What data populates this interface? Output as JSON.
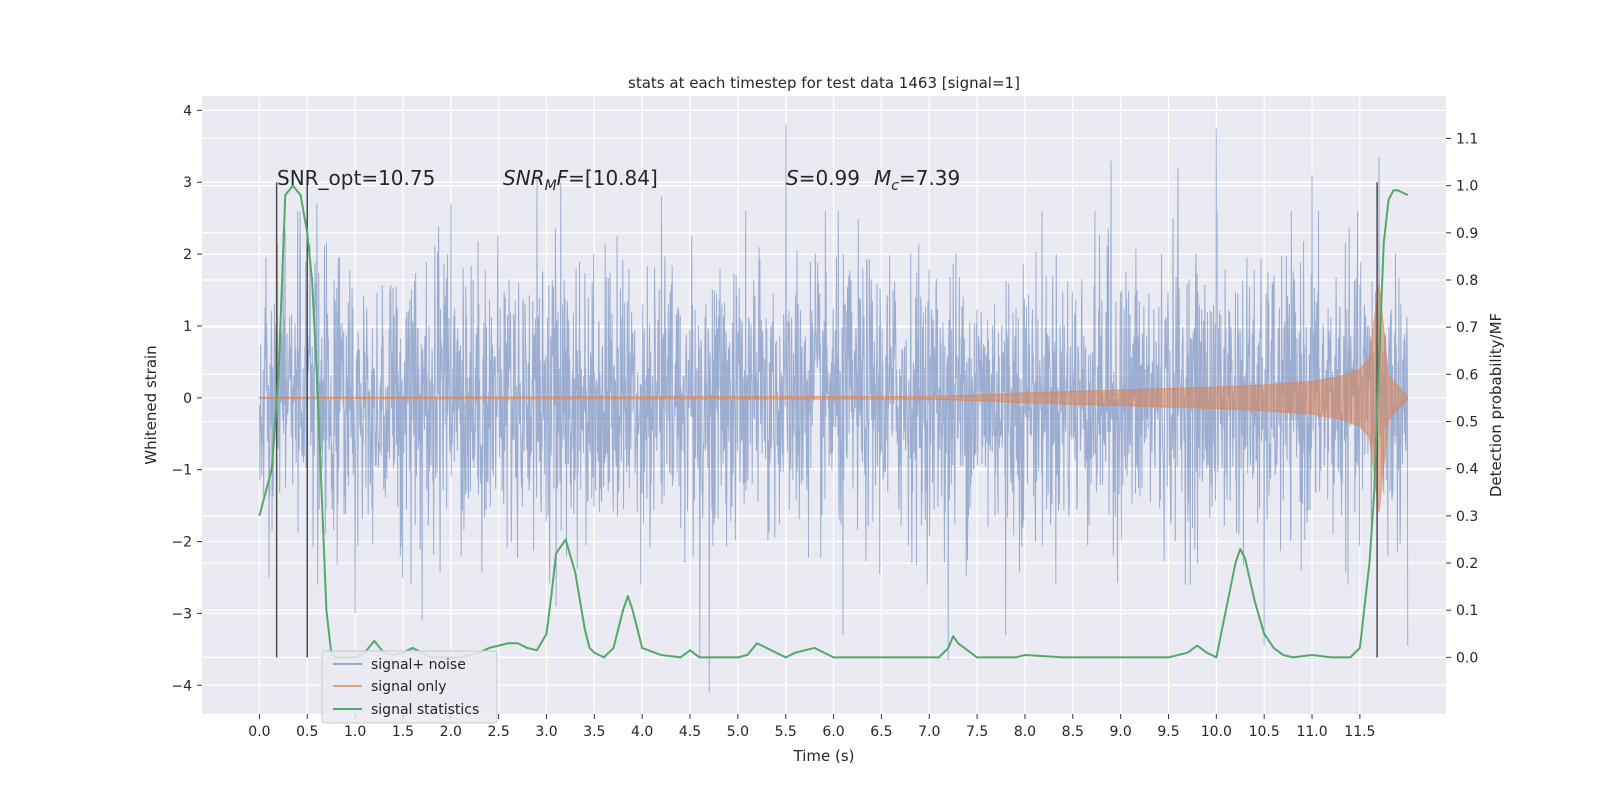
{
  "chart_data": {
    "type": "line",
    "title": "stats at each timestep for test data 1463 [signal=1]",
    "xlabel": "Time (s)",
    "ylabel": "Whitened strain",
    "y2label": "Detection probability/MF",
    "xlim": [
      -0.6,
      12.4
    ],
    "ylim": [
      -4.4,
      4.2
    ],
    "y2lim": [
      -0.12,
      1.19
    ],
    "x_ticks": [
      0.0,
      0.5,
      1.0,
      1.5,
      2.0,
      2.5,
      3.0,
      3.5,
      4.0,
      4.5,
      5.0,
      5.5,
      6.0,
      6.5,
      7.0,
      7.5,
      8.0,
      8.5,
      9.0,
      9.5,
      10.0,
      10.5,
      11.0,
      11.5
    ],
    "x_tick_labels": [
      "0.0",
      "0.5",
      "1.0",
      "1.5",
      "2.0",
      "2.5",
      "3.0",
      "3.5",
      "4.0",
      "4.5",
      "5.0",
      "5.5",
      "6.0",
      "6.5",
      "7.0",
      "7.5",
      "8.0",
      "8.5",
      "9.0",
      "9.5",
      "10.0",
      "10.5",
      "11.0",
      "11.5"
    ],
    "y_ticks": [
      4,
      3,
      2,
      1,
      0,
      -1,
      -2,
      -3,
      -4
    ],
    "y_tick_labels": [
      "4",
      "3",
      "2",
      "1",
      "0",
      "−1",
      "−2",
      "−3",
      "−4"
    ],
    "y2_ticks": [
      1.1,
      1.0,
      0.9,
      0.8,
      0.7,
      0.6,
      0.5,
      0.4,
      0.3,
      0.2,
      0.1,
      0.0
    ],
    "y2_tick_labels": [
      "1.1",
      "1.0",
      "0.9",
      "0.8",
      "0.7",
      "0.6",
      "0.5",
      "0.4",
      "0.3",
      "0.2",
      "0.1",
      "0.0"
    ],
    "grid": true,
    "legend_position": "lower-left",
    "series": [
      {
        "name": "signal+ noise",
        "color": "#4c72b0",
        "axis": "left",
        "x_range": [
          0.0,
          12.0
        ],
        "typical_envelope": [
          -1.9,
          1.8
        ],
        "peaks": [
          [
            0.25,
            2.3
          ],
          [
            0.4,
            2.6
          ],
          [
            0.6,
            2.7
          ],
          [
            2.0,
            2.7
          ],
          [
            2.9,
            3.1
          ],
          [
            3.15,
            3.0
          ],
          [
            4.2,
            2.8
          ],
          [
            5.5,
            3.8
          ],
          [
            8.9,
            3.3
          ],
          [
            9.6,
            3.2
          ],
          [
            10.0,
            3.75
          ],
          [
            11.0,
            3.1
          ],
          [
            11.7,
            3.35
          ]
        ],
        "troughs": [
          [
            0.1,
            -2.5
          ],
          [
            1.0,
            -3.0
          ],
          [
            1.7,
            -3.1
          ],
          [
            3.1,
            -2.9
          ],
          [
            4.6,
            -3.6
          ],
          [
            4.7,
            -4.1
          ],
          [
            6.1,
            -3.3
          ],
          [
            7.2,
            -3.65
          ],
          [
            7.8,
            -3.3
          ],
          [
            10.5,
            -3.45
          ],
          [
            12.0,
            -3.45
          ]
        ]
      },
      {
        "name": "signal only",
        "color": "#dd8452",
        "axis": "left",
        "x": [
          0.0,
          7.0,
          7.5,
          8.0,
          8.5,
          9.0,
          9.5,
          10.0,
          10.5,
          11.0,
          11.3,
          11.5,
          11.6,
          11.7,
          11.8,
          12.0
        ],
        "amplitude": [
          0.01,
          0.02,
          0.04,
          0.07,
          0.09,
          0.11,
          0.13,
          0.15,
          0.18,
          0.23,
          0.3,
          0.4,
          0.55,
          1.6,
          0.3,
          0.02
        ]
      },
      {
        "name": "signal statistics",
        "color": "#55a868",
        "axis": "right",
        "x": [
          0.0,
          0.13,
          0.2,
          0.27,
          0.35,
          0.43,
          0.5,
          0.55,
          0.6,
          0.65,
          0.7,
          0.75,
          0.8,
          0.85,
          0.9,
          1.0,
          1.1,
          1.2,
          1.3,
          1.4,
          1.5,
          1.6,
          1.7,
          1.8,
          1.9,
          2.1,
          2.3,
          2.4,
          2.5,
          2.6,
          2.7,
          2.8,
          2.9,
          3.0,
          3.05,
          3.1,
          3.2,
          3.3,
          3.4,
          3.45,
          3.5,
          3.6,
          3.7,
          3.75,
          3.8,
          3.85,
          3.9,
          4.0,
          4.2,
          4.4,
          4.5,
          4.6,
          4.8,
          5.0,
          5.1,
          5.2,
          5.4,
          5.5,
          5.6,
          5.8,
          6.0,
          7.0,
          7.1,
          7.15,
          7.2,
          7.25,
          7.3,
          7.5,
          7.9,
          8.0,
          8.4,
          9.5,
          9.7,
          9.8,
          9.9,
          10.0,
          10.1,
          10.2,
          10.25,
          10.3,
          10.4,
          10.5,
          10.6,
          10.7,
          10.8,
          11.0,
          11.2,
          11.4,
          11.5,
          11.6,
          11.65,
          11.7,
          11.75,
          11.8,
          11.85,
          11.9,
          12.0
        ],
        "y": [
          0.3,
          0.4,
          0.6,
          0.98,
          1.0,
          0.98,
          0.9,
          0.8,
          0.6,
          0.35,
          0.1,
          0.01,
          0.0,
          0.0,
          0.0,
          0.0,
          0.01,
          0.035,
          0.01,
          0.005,
          0.01,
          0.02,
          0.01,
          0.0,
          0.0,
          0.0,
          0.01,
          0.02,
          0.025,
          0.03,
          0.03,
          0.02,
          0.015,
          0.05,
          0.13,
          0.22,
          0.25,
          0.18,
          0.06,
          0.02,
          0.01,
          0.0,
          0.02,
          0.06,
          0.1,
          0.13,
          0.1,
          0.02,
          0.005,
          0.0,
          0.015,
          0.0,
          0.0,
          0.0,
          0.005,
          0.03,
          0.01,
          0.0,
          0.01,
          0.02,
          0.0,
          0.0,
          0.0,
          0.01,
          0.02,
          0.045,
          0.03,
          0.0,
          0.0,
          0.005,
          0.0,
          0.0,
          0.01,
          0.025,
          0.01,
          0.0,
          0.1,
          0.2,
          0.23,
          0.21,
          0.12,
          0.05,
          0.02,
          0.005,
          0.0,
          0.005,
          0.0,
          0.0,
          0.02,
          0.2,
          0.35,
          0.63,
          0.88,
          0.97,
          0.99,
          0.99,
          0.98
        ]
      }
    ],
    "vertical_lines_x": [
      0.18,
      0.5,
      11.68
    ],
    "vertical_lines_color": "#4d4d4d",
    "annotations": [
      {
        "text": "SNR_opt=10.75",
        "x": 0.2
      },
      {
        "text": "SNR_MF=[10.84]",
        "x": 2.6
      },
      {
        "text": "S=0.99   M_c=7.39",
        "x": 5.6
      }
    ],
    "annotation_y": 3.0
  },
  "annotation_parts": {
    "snr_opt": "SNR_opt=10.75",
    "snr_mf_sym": "SNR",
    "snr_mf_sub": "M",
    "snr_mf_f": "F",
    "snr_mf_val": "=[10.84]",
    "s_sym": "S",
    "s_val": "=0.99",
    "mc_sym": "M",
    "mc_sub": "c",
    "mc_val": "=7.39"
  },
  "legend": {
    "items": [
      {
        "label": "signal+ noise",
        "color": "#4c72b0"
      },
      {
        "label": "signal only",
        "color": "#dd8452"
      },
      {
        "label": "signal statistics",
        "color": "#55a868"
      }
    ]
  },
  "style": {
    "axes_background": "#eaeaf2",
    "grid_color": "#ffffff",
    "page_background": "#ffffff"
  }
}
